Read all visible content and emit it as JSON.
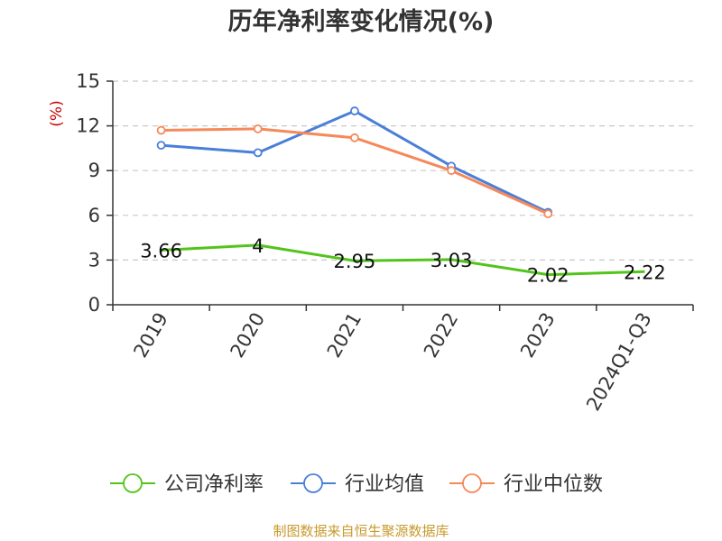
{
  "chart_data": {
    "type": "line",
    "title": "历年净利率变化情况(%)",
    "unit_label": "(%)",
    "categories": [
      "2019",
      "2020",
      "2021",
      "2022",
      "2023",
      "2024Q1-Q3"
    ],
    "ylim": [
      0,
      15
    ],
    "yticks": [
      0,
      3,
      6,
      9,
      12,
      15
    ],
    "grid": true,
    "legend_position": "bottom",
    "series": [
      {
        "name": "公司净利率",
        "color": "#52c41a",
        "values": [
          3.66,
          4,
          2.95,
          3.03,
          2.02,
          2.22
        ],
        "labels": [
          "3.66",
          "4",
          "2.95",
          "3.03",
          "2.02",
          "2.22"
        ],
        "show_markers": false
      },
      {
        "name": "行业均值",
        "color": "#4a7fd9",
        "values": [
          10.7,
          10.2,
          13.0,
          9.3,
          6.2,
          null
        ],
        "show_markers": true
      },
      {
        "name": "行业中位数",
        "color": "#f5895a",
        "values": [
          11.7,
          11.8,
          11.2,
          9.0,
          6.1,
          null
        ],
        "show_markers": true
      }
    ],
    "source": "制图数据来自恒生聚源数据库"
  }
}
